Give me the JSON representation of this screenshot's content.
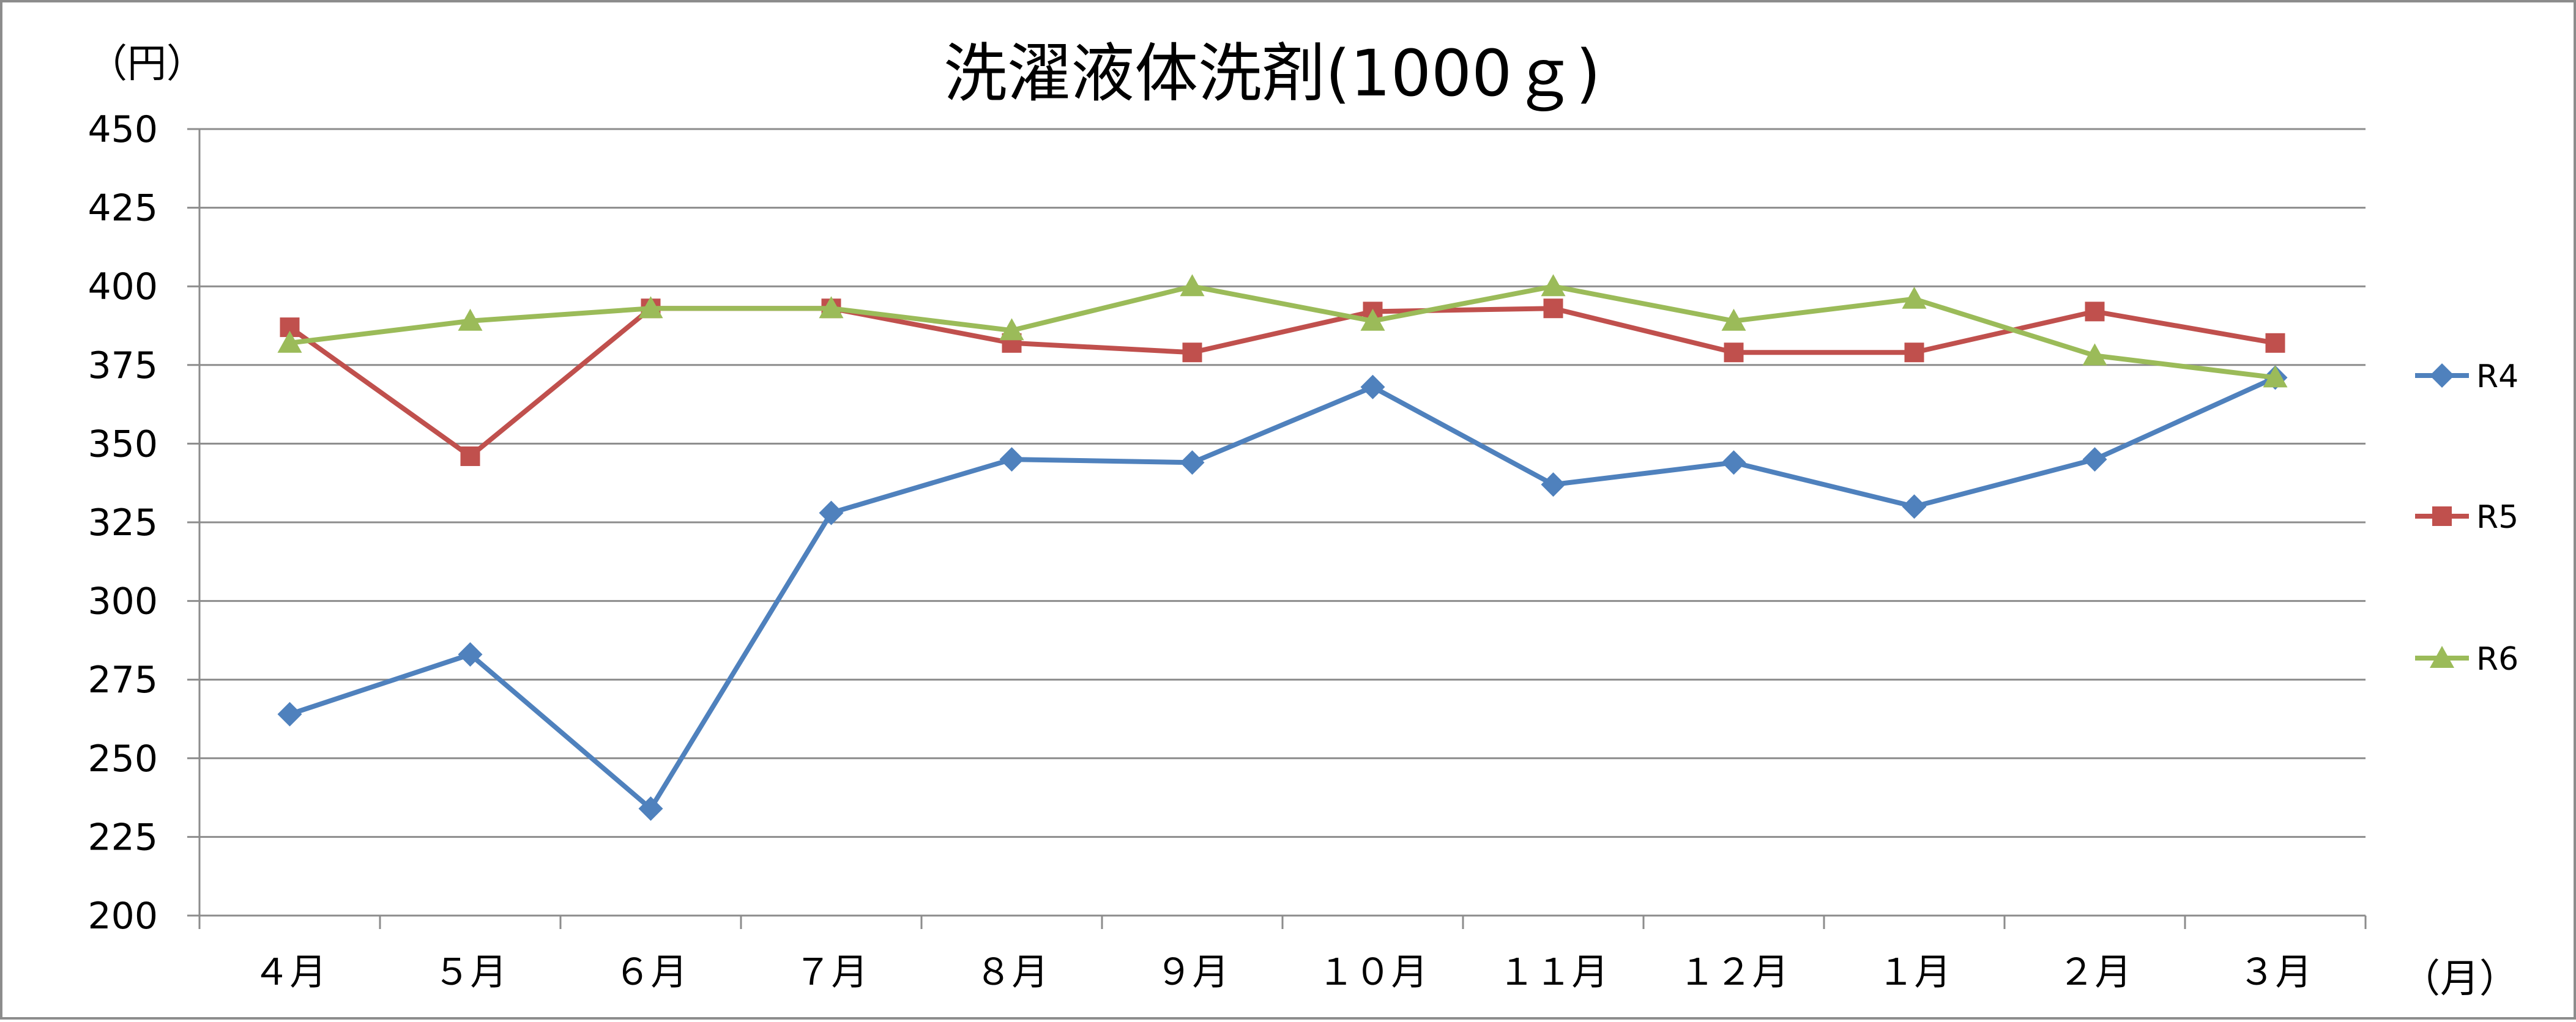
{
  "chart_data": {
    "type": "line",
    "title": "洗濯液体洗剤(1000ｇ)",
    "ylabel": "（円）",
    "xlabel": "（月）",
    "ylim": [
      200,
      450
    ],
    "ytick_step": 25,
    "categories": [
      "４月",
      "５月",
      "６月",
      "７月",
      "８月",
      "９月",
      "１０月",
      "１１月",
      "１２月",
      "１月",
      "２月",
      "３月"
    ],
    "series": [
      {
        "name": "R4",
        "color": "#4f81bd",
        "marker": "diamond",
        "values": [
          264,
          283,
          234,
          328,
          345,
          344,
          368,
          337,
          344,
          330,
          345,
          371
        ]
      },
      {
        "name": "R5",
        "color": "#c0504d",
        "marker": "square",
        "values": [
          387,
          346,
          393,
          393,
          382,
          379,
          392,
          393,
          379,
          379,
          392,
          382
        ]
      },
      {
        "name": "R6",
        "color": "#9bbb59",
        "marker": "triangle",
        "values": [
          382,
          389,
          393,
          393,
          386,
          400,
          389,
          400,
          389,
          396,
          378,
          371
        ]
      }
    ],
    "grid": true,
    "legend": "right"
  }
}
